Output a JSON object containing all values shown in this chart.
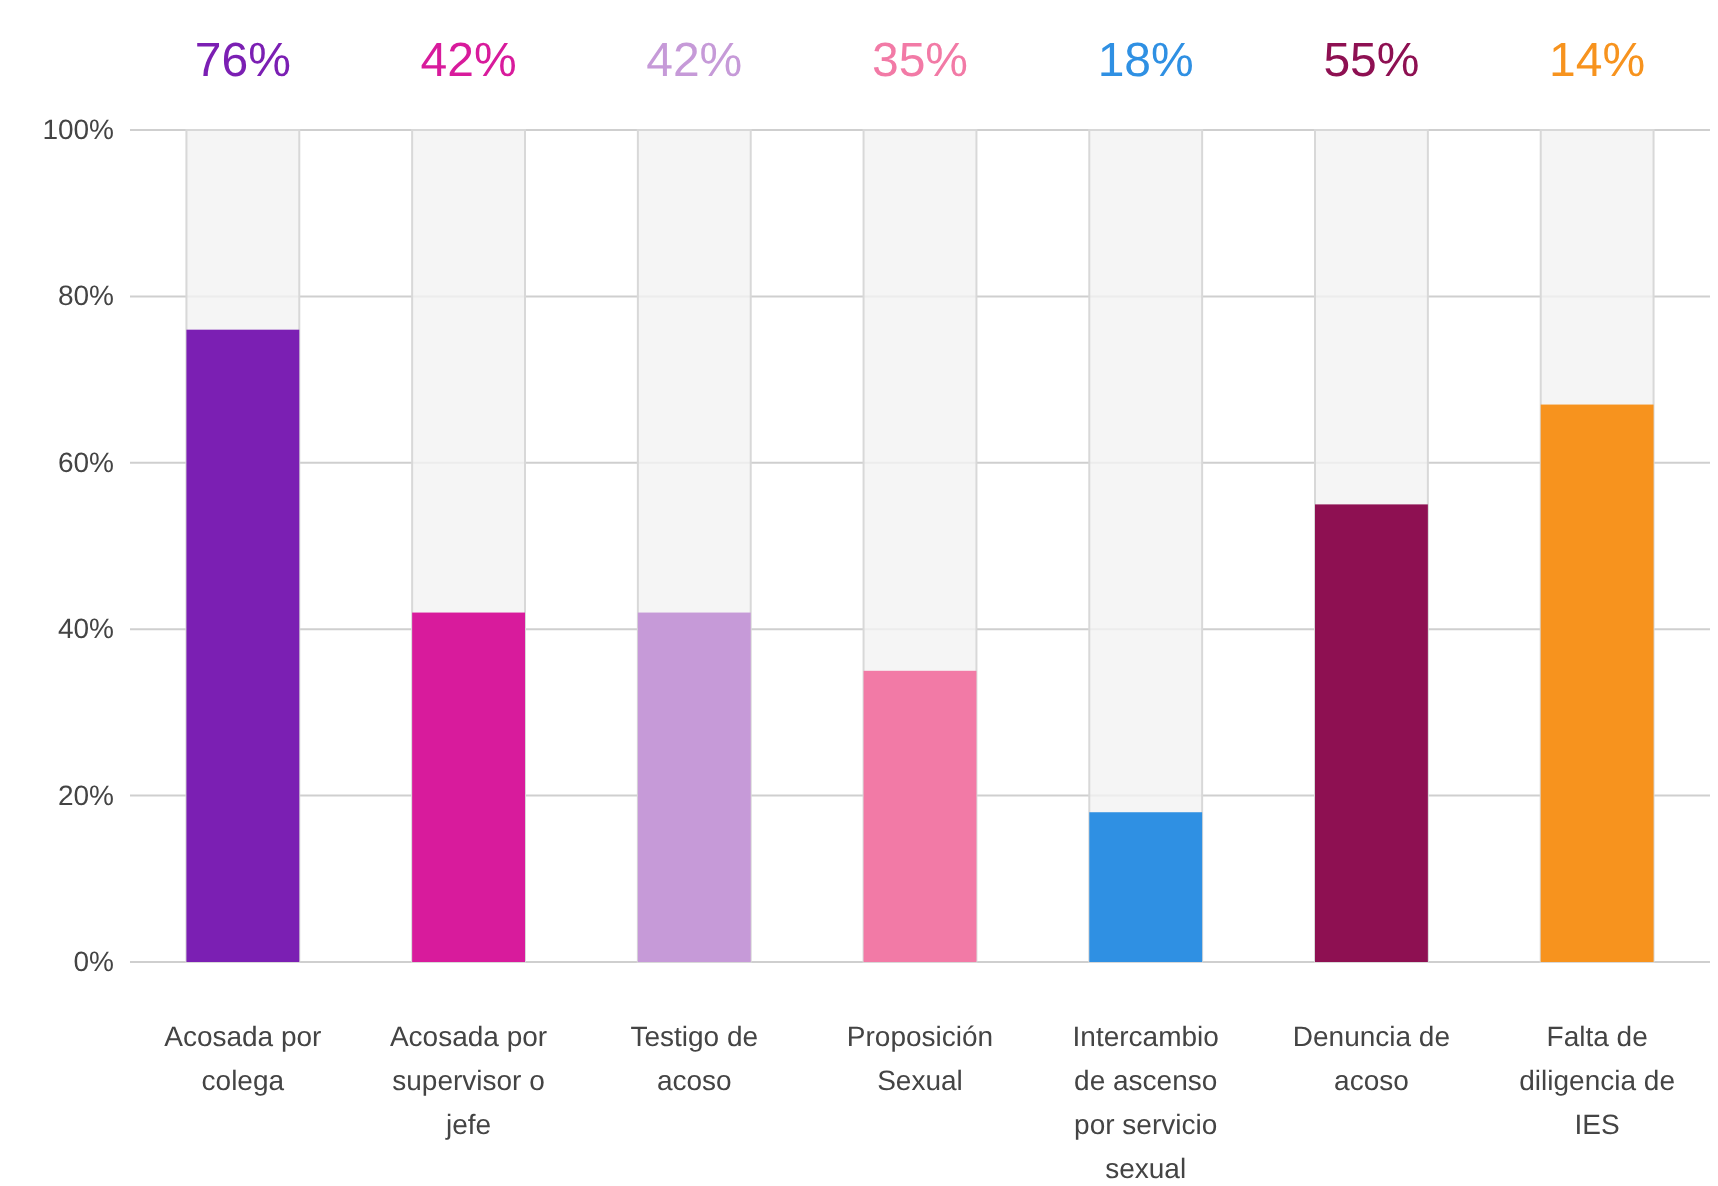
{
  "chart_data": {
    "type": "bar",
    "categories": [
      "Acosada por colega",
      "Acosada por supervisor o jefe",
      "Testigo de acoso",
      "Proposición Sexual",
      "Intercambio de ascenso por servicio sexual",
      "Denuncia de acoso",
      "Falta de diligencia de IES"
    ],
    "values": [
      76,
      42,
      42,
      35,
      18,
      55,
      67
    ],
    "colors": [
      "#7b1fb3",
      "#d81b9c",
      "#c69ad8",
      "#f27aa6",
      "#2f90e3",
      "#8e1052",
      "#f7931e"
    ],
    "annotations": [
      "76%",
      "42%",
      "42%",
      "35%",
      "18%",
      "55%",
      "14%"
    ],
    "ylim": [
      0,
      100
    ],
    "yticks": [
      {
        "value": 0,
        "label": "0%"
      },
      {
        "value": 20,
        "label": "20%"
      },
      {
        "value": 40,
        "label": "40%"
      },
      {
        "value": 60,
        "label": "60%"
      },
      {
        "value": 80,
        "label": "80%"
      },
      {
        "value": 100,
        "label": "100%"
      }
    ],
    "grid": "y"
  }
}
